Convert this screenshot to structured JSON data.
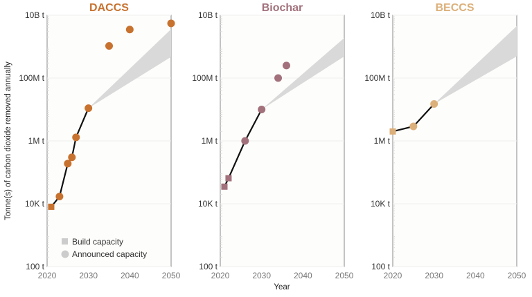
{
  "chart_data": {
    "type": "scatter",
    "ylabel": "Tonne(s) of carbon dioxide removed annually",
    "xlabel": "Year",
    "yscale": "log",
    "ylim": [
      100,
      10000000000
    ],
    "xlim": [
      2020,
      2050
    ],
    "yticks": [
      100,
      10000,
      1000000,
      100000000,
      10000000000
    ],
    "ytick_labels": [
      "100 t",
      "10K t",
      "1M t",
      "100M t",
      "10B t"
    ],
    "xticks": [
      2020,
      2030,
      2040,
      2050
    ],
    "xtick_labels": [
      "2020",
      "2030",
      "2040",
      "2050"
    ],
    "legend": {
      "placement": "bottom-left of first panel",
      "entries": [
        {
          "label": "Build capacity",
          "marker": "square"
        },
        {
          "label": "Announced capacity",
          "marker": "circle"
        }
      ]
    },
    "panels": [
      {
        "title": "DACCS",
        "color": "#c8722f",
        "build": [
          {
            "x": 2021,
            "y": 8000
          }
        ],
        "announced": [
          {
            "x": 2023,
            "y": 17000
          },
          {
            "x": 2025,
            "y": 190000
          },
          {
            "x": 2026,
            "y": 300000
          },
          {
            "x": 2027,
            "y": 1300000
          },
          {
            "x": 2030,
            "y": 11000000
          },
          {
            "x": 2035,
            "y": 1050000000
          },
          {
            "x": 2040,
            "y": 3500000000
          },
          {
            "x": 2050,
            "y": 5500000000
          }
        ],
        "line_through": [
          2021,
          2023,
          2025,
          2026,
          2027,
          2030
        ],
        "projection_band": {
          "x": [
            2030,
            2050
          ],
          "lower_end": 470000000,
          "upper_end": 3600000000
        }
      },
      {
        "title": "Biochar",
        "color": "#a2717c",
        "build": [
          {
            "x": 2021,
            "y": 35000
          },
          {
            "x": 2022,
            "y": 65000
          }
        ],
        "announced": [
          {
            "x": 2026,
            "y": 1000000
          },
          {
            "x": 2030,
            "y": 10000000
          },
          {
            "x": 2034,
            "y": 100000000
          },
          {
            "x": 2036,
            "y": 250000000
          }
        ],
        "line_through": [
          2021,
          2022,
          2026,
          2030
        ],
        "projection_band": {
          "x": [
            2030,
            2050
          ],
          "lower_end": 490000000,
          "upper_end": 1900000000
        }
      },
      {
        "title": "BECCS",
        "color": "#dcb07a",
        "build": [
          {
            "x": 2020,
            "y": 2000000
          }
        ],
        "announced": [
          {
            "x": 2025,
            "y": 2900000
          },
          {
            "x": 2030,
            "y": 15000000
          }
        ],
        "line_through": [
          2020,
          2025,
          2030
        ],
        "projection_band": {
          "x": [
            2030,
            2050
          ],
          "lower_end": 490000000,
          "upper_end": 4500000000
        }
      }
    ]
  }
}
